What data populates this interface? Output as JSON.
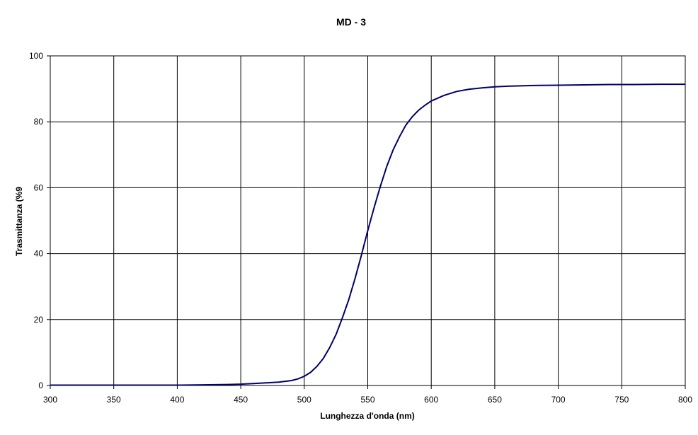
{
  "chart_data": {
    "type": "line",
    "title": "MD - 3",
    "xlabel": "Lunghezza d'onda   (nm)",
    "ylabel": "Trasmittanza   (%9",
    "xlim": [
      300,
      800
    ],
    "ylim": [
      0,
      100
    ],
    "xticks": [
      300,
      350,
      400,
      450,
      500,
      550,
      600,
      650,
      700,
      750,
      800
    ],
    "yticks": [
      0,
      20,
      40,
      60,
      80,
      100
    ],
    "grid": true,
    "line_color": "#00006e",
    "series": [
      {
        "x": [
          300,
          350,
          400,
          420,
          440,
          450,
          460,
          470,
          480,
          490,
          495,
          500,
          505,
          510,
          515,
          520,
          525,
          530,
          535,
          540,
          545,
          550,
          555,
          560,
          565,
          570,
          575,
          580,
          585,
          590,
          595,
          600,
          610,
          620,
          630,
          640,
          650,
          660,
          680,
          700,
          720,
          740,
          760,
          780,
          800
        ],
        "y": [
          0.1,
          0.1,
          0.1,
          0.2,
          0.3,
          0.4,
          0.6,
          0.8,
          1.0,
          1.5,
          2.0,
          2.8,
          4.0,
          5.8,
          8.2,
          11.5,
          15.5,
          20.5,
          26.0,
          32.5,
          39.5,
          47.0,
          54.0,
          60.5,
          66.5,
          71.5,
          75.5,
          79.0,
          81.5,
          83.5,
          85.0,
          86.3,
          88.0,
          89.2,
          89.9,
          90.3,
          90.6,
          90.8,
          91.0,
          91.1,
          91.2,
          91.3,
          91.3,
          91.4,
          91.4
        ]
      }
    ]
  }
}
